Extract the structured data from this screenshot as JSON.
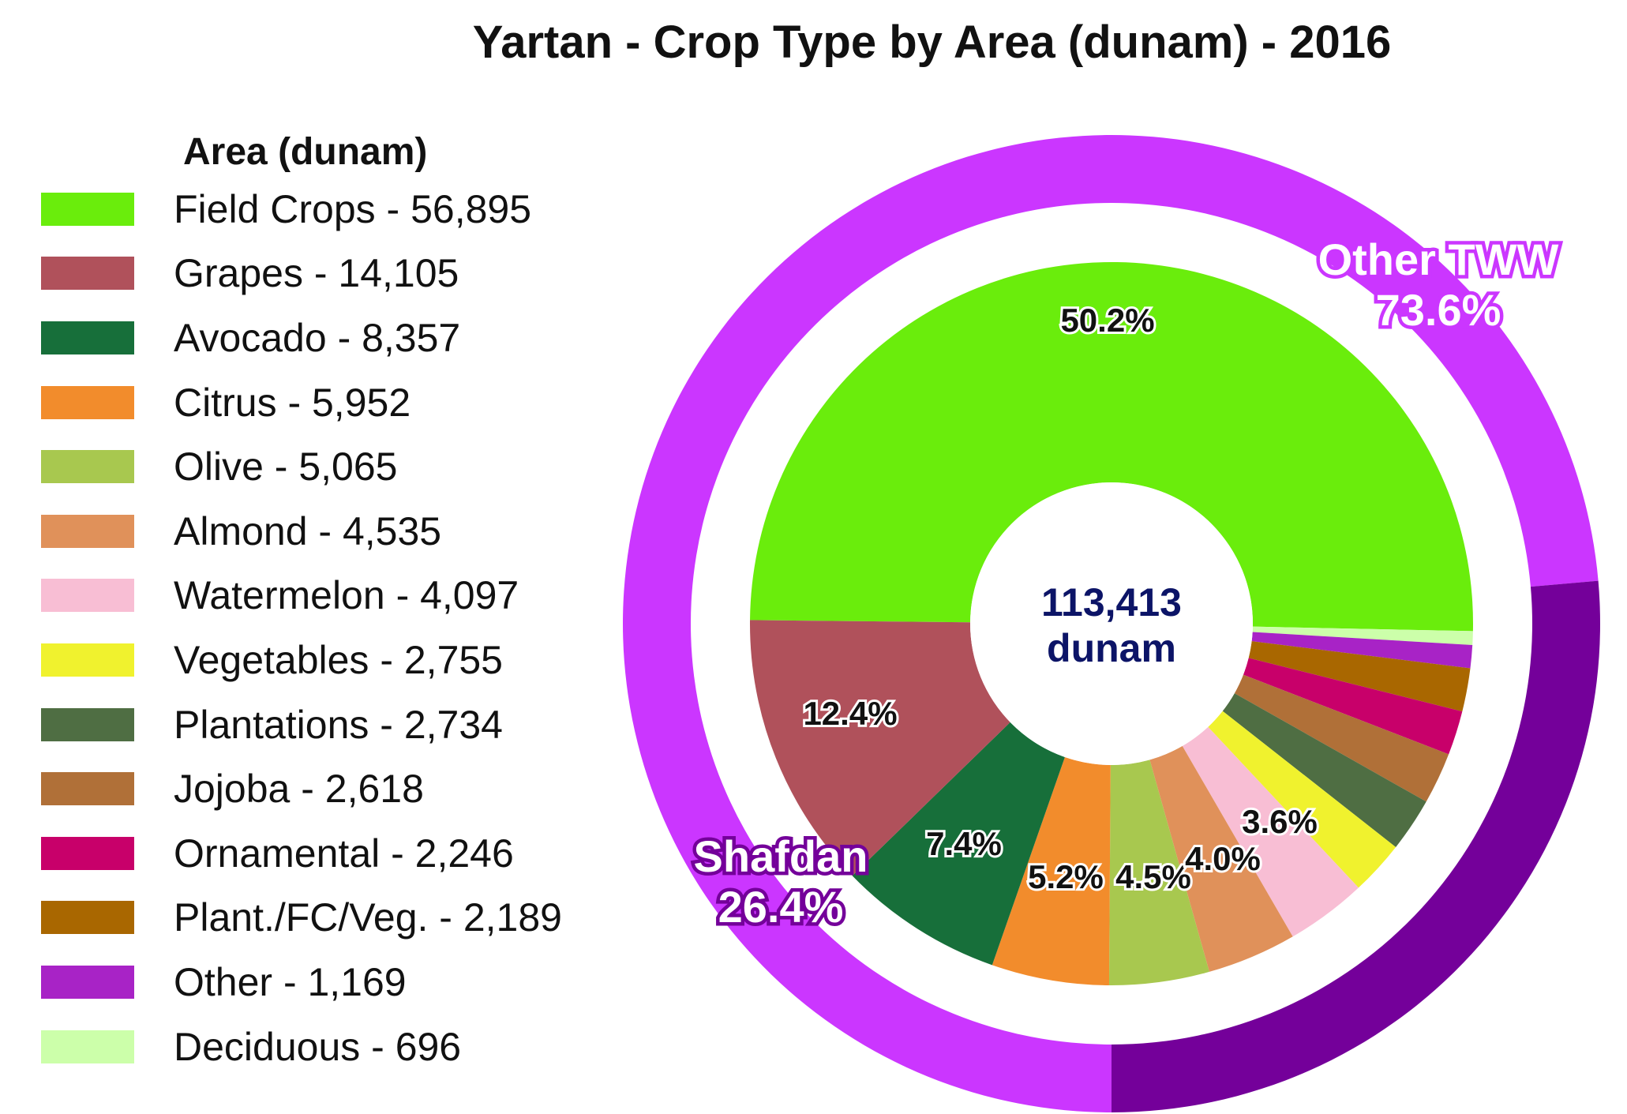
{
  "chart_data": {
    "type": "pie",
    "title": "Yartan - Crop Type by Area (dunam) - 2016",
    "legend_title": "Area (dunam)",
    "legend_placement": "left",
    "center_label": [
      "113,413",
      "dunam"
    ],
    "inner_ring": {
      "categories": [
        "Field Crops",
        "Grapes",
        "Avocado",
        "Citrus",
        "Olive",
        "Almond",
        "Watermelon",
        "Vegetables",
        "Plantations",
        "Jojoba",
        "Ornamental",
        "Plant./FC/Veg.",
        "Other",
        "Deciduous"
      ],
      "values": [
        56895,
        14105,
        8357,
        5952,
        5065,
        4535,
        4097,
        2755,
        2734,
        2618,
        2246,
        2189,
        1169,
        696
      ],
      "legend_labels": [
        "Field Crops - 56,895",
        "Grapes - 14,105",
        "Avocado - 8,357",
        "Citrus - 5,952",
        "Olive - 5,065",
        "Almond - 4,535",
        "Watermelon - 4,097",
        "Vegetables - 2,755",
        "Plantations - 2,734",
        "Jojoba - 2,618",
        "Ornamental - 2,246",
        "Plant./FC/Veg. - 2,189",
        "Other - 1,169",
        "Deciduous - 696"
      ],
      "slice_labels": [
        "50.2%",
        "12.4%",
        "7.4%",
        "5.2%",
        "4.5%",
        "4.0%",
        "3.6%",
        "",
        "",
        "",
        "",
        "",
        "",
        ""
      ],
      "colors": [
        "#6aed0c",
        "#b0515b",
        "#176f3a",
        "#f28c2c",
        "#a8c84f",
        "#e0915a",
        "#f8bed4",
        "#f0f22e",
        "#4f6e43",
        "#b07038",
        "#c8006a",
        "#a96700",
        "#a823c6",
        "#ccffaa"
      ]
    },
    "outer_ring": {
      "categories": [
        "Other TWW",
        "Shafdan"
      ],
      "values": [
        73.6,
        26.4
      ],
      "labels": [
        "Other TWW\n73.6%",
        "Shafdan\n26.4%"
      ],
      "colors": [
        "#cb36ff",
        "#74009a"
      ]
    }
  }
}
